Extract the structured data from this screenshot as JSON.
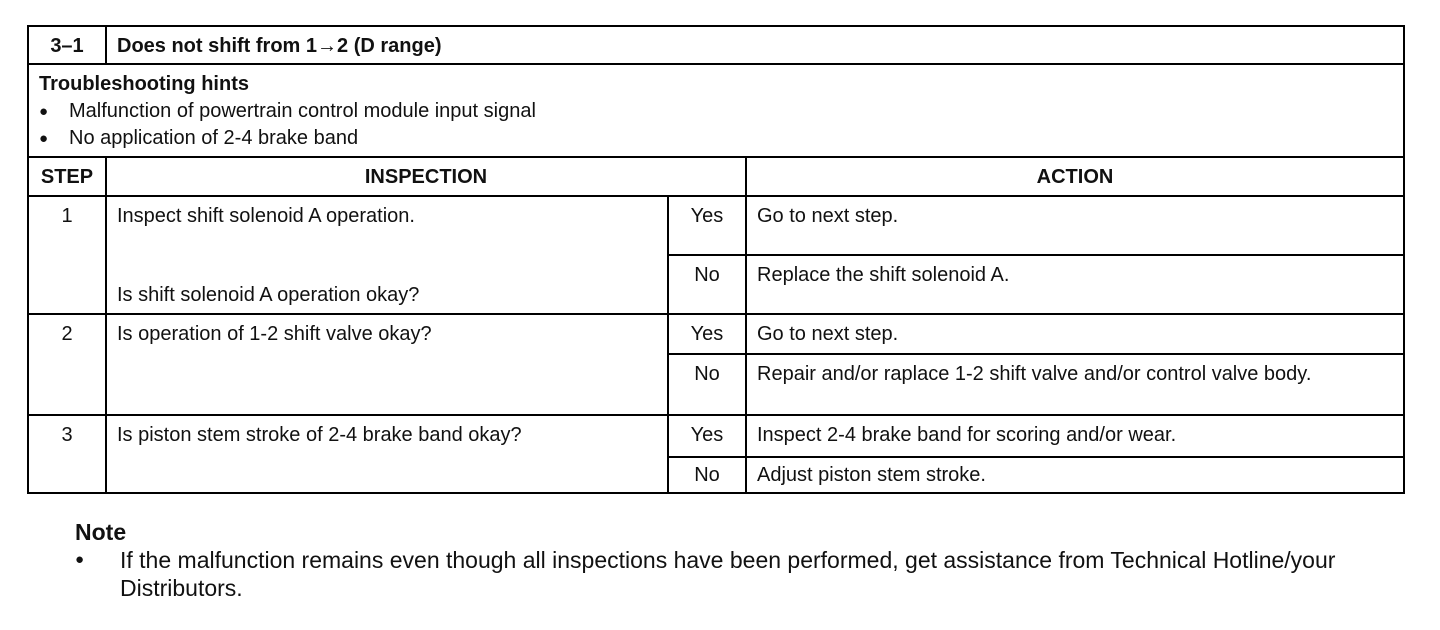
{
  "header": {
    "code": "3–1",
    "title": "Does not shift from 1→2 (D range)"
  },
  "hints": {
    "title": "Troubleshooting hints",
    "items": [
      "Malfunction of powertrain control module input signal",
      "No application of 2-4 brake band"
    ]
  },
  "table": {
    "columns": [
      "STEP",
      "INSPECTION",
      "ACTION"
    ],
    "rows": [
      {
        "step": "1",
        "inspection": [
          "Inspect shift solenoid A operation.",
          "Is shift solenoid A operation okay?"
        ],
        "outcomes": [
          {
            "answer": "Yes",
            "action": "Go to next step."
          },
          {
            "answer": "No",
            "action": "Replace the shift solenoid A."
          }
        ]
      },
      {
        "step": "2",
        "inspection": [
          "Is operation of 1-2 shift valve okay?"
        ],
        "outcomes": [
          {
            "answer": "Yes",
            "action": "Go to next step."
          },
          {
            "answer": "No",
            "action": "Repair and/or raplace 1-2 shift valve and/or control valve body."
          }
        ]
      },
      {
        "step": "3",
        "inspection": [
          "Is piston stem stroke of 2-4 brake band okay?"
        ],
        "outcomes": [
          {
            "answer": "Yes",
            "action": "Inspect 2-4 brake band for scoring and/or wear."
          },
          {
            "answer": "No",
            "action": "Adjust piston stem stroke."
          }
        ]
      }
    ]
  },
  "note": {
    "title": "Note",
    "items": [
      "If the malfunction remains even though all inspections have been performed, get assistance from Technical Hotline/your Distributors."
    ]
  }
}
